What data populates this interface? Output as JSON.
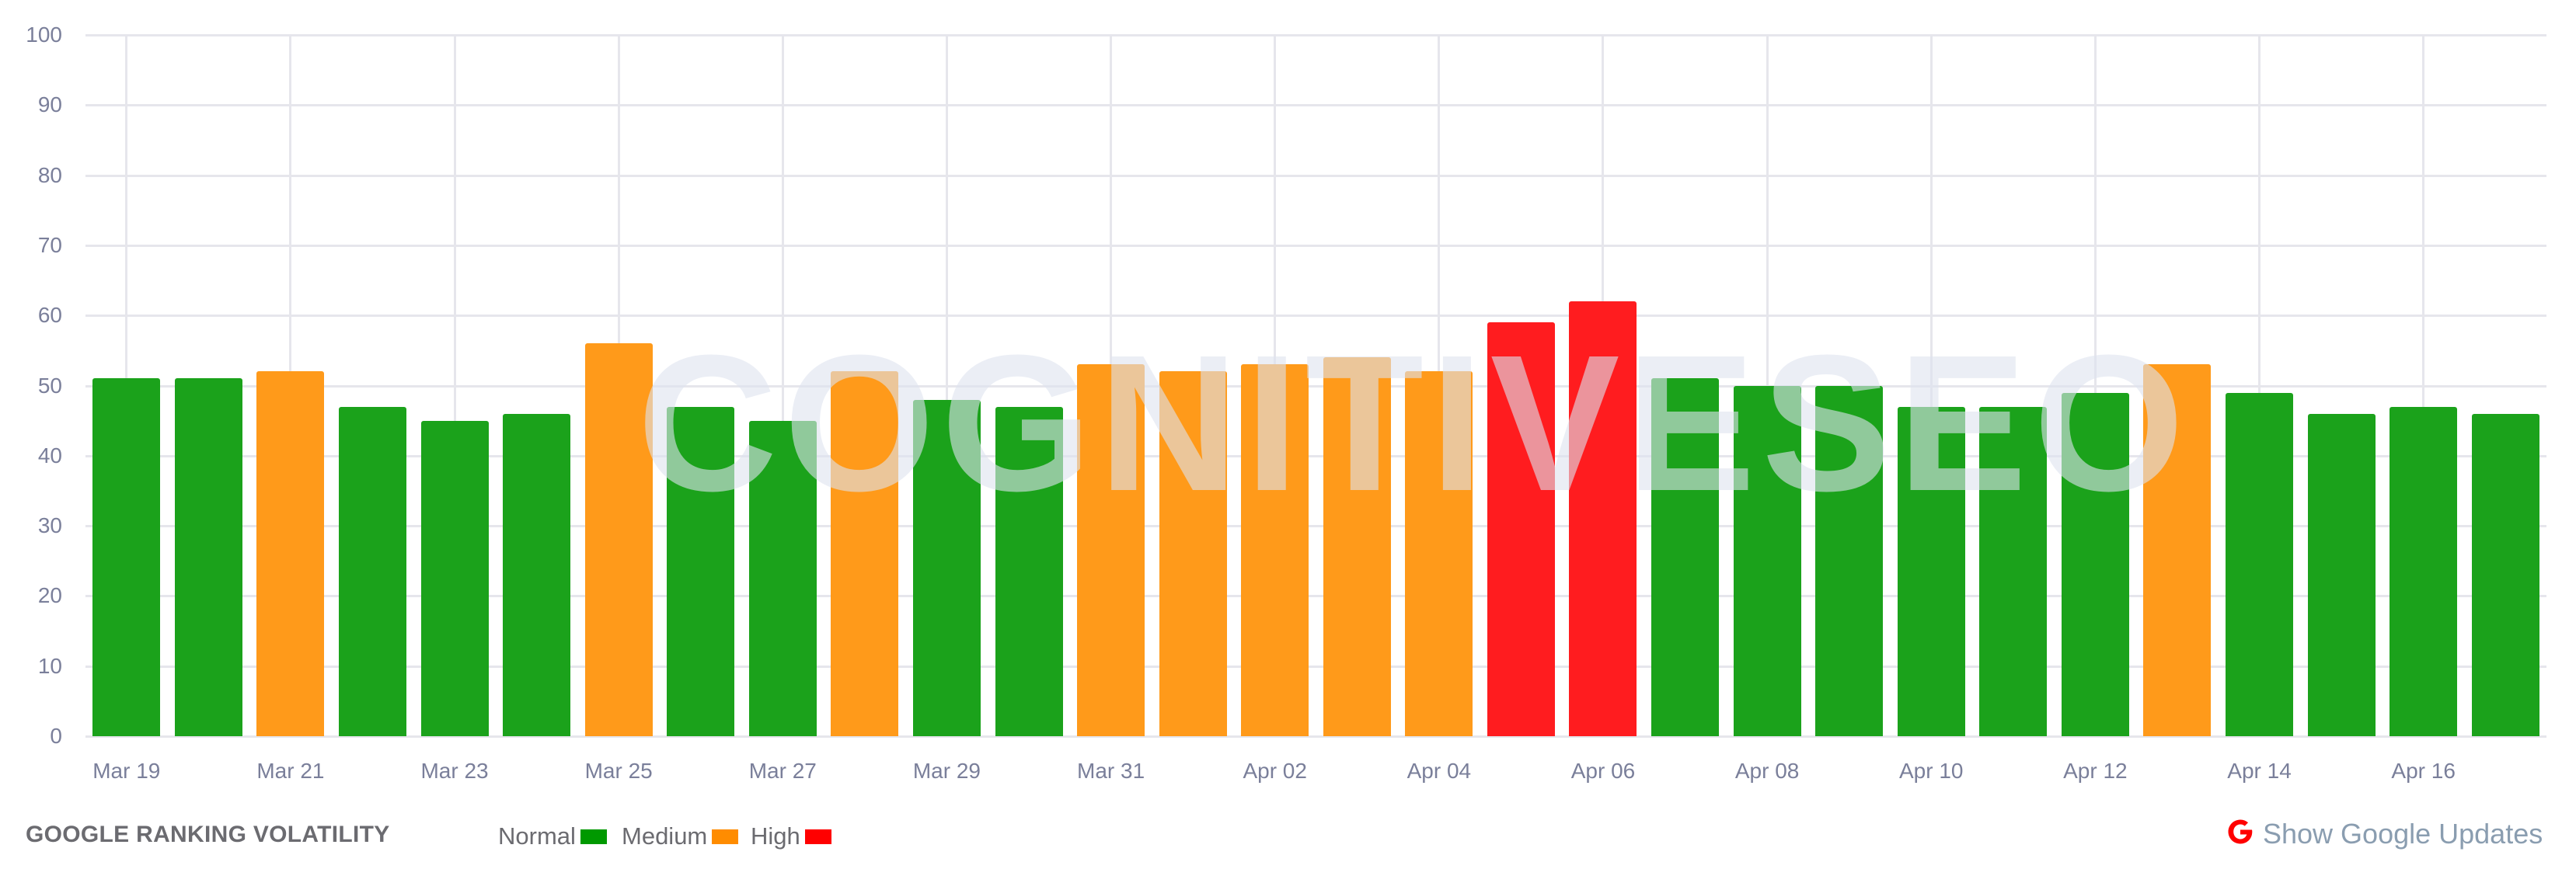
{
  "chart_data": {
    "type": "bar",
    "title": "GOOGLE RANKING VOLATILITY",
    "xlabel": "",
    "ylabel": "",
    "ylim": [
      0,
      100
    ],
    "yticks": [
      0,
      10,
      20,
      30,
      40,
      50,
      60,
      70,
      80,
      90,
      100
    ],
    "grid": true,
    "legend_position": "bottom",
    "categories": [
      "Mar 19",
      "Mar 20",
      "Mar 21",
      "Mar 22",
      "Mar 23",
      "Mar 24",
      "Mar 25",
      "Mar 26",
      "Mar 27",
      "Mar 28",
      "Mar 29",
      "Mar 30",
      "Mar 31",
      "Apr 01",
      "Apr 02",
      "Apr 03",
      "Apr 04",
      "Apr 05",
      "Apr 06",
      "Apr 07",
      "Apr 08",
      "Apr 09",
      "Apr 10",
      "Apr 11",
      "Apr 12",
      "Apr 13",
      "Apr 14",
      "Apr 15",
      "Apr 16",
      "Apr 17"
    ],
    "values": [
      51,
      51,
      52,
      47,
      45,
      46,
      56,
      47,
      45,
      52,
      48,
      47,
      53,
      52,
      53,
      54,
      52,
      59,
      62,
      51,
      50,
      50,
      47,
      47,
      49,
      53,
      49,
      46,
      47,
      46
    ],
    "levels": [
      "Normal",
      "Normal",
      "Medium",
      "Normal",
      "Normal",
      "Normal",
      "Medium",
      "Normal",
      "Normal",
      "Medium",
      "Normal",
      "Normal",
      "Medium",
      "Medium",
      "Medium",
      "Medium",
      "Medium",
      "High",
      "High",
      "Normal",
      "Normal",
      "Normal",
      "Normal",
      "Normal",
      "Normal",
      "Medium",
      "Normal",
      "Normal",
      "Normal",
      "Normal"
    ],
    "xtick_labels": [
      "Mar 19",
      "Mar 21",
      "Mar 23",
      "Mar 25",
      "Mar 27",
      "Mar 29",
      "Mar 31",
      "Apr 02",
      "Apr 04",
      "Apr 06",
      "Apr 08",
      "Apr 10",
      "Apr 12",
      "Apr 14",
      "Apr 16"
    ],
    "legend": [
      {
        "name": "Normal",
        "color": "#009900"
      },
      {
        "name": "Medium",
        "color": "#ff8c00"
      },
      {
        "name": "High",
        "color": "#ff0000"
      }
    ],
    "bar_colors": {
      "Normal": "#1ba21b",
      "Medium": "#ff9a1a",
      "High": "#ff1c1f"
    },
    "watermark": "COGNITIVESEO"
  },
  "footer": {
    "title": "GOOGLE RANKING VOLATILITY",
    "legend": [
      {
        "label": "Normal",
        "color": "#009900"
      },
      {
        "label": "Medium",
        "color": "#ff8c00"
      },
      {
        "label": "High",
        "color": "#ff0000"
      }
    ],
    "google_updates": {
      "icon": "google-g-icon",
      "label": "Show Google Updates",
      "icon_color": "#ff0000"
    }
  }
}
